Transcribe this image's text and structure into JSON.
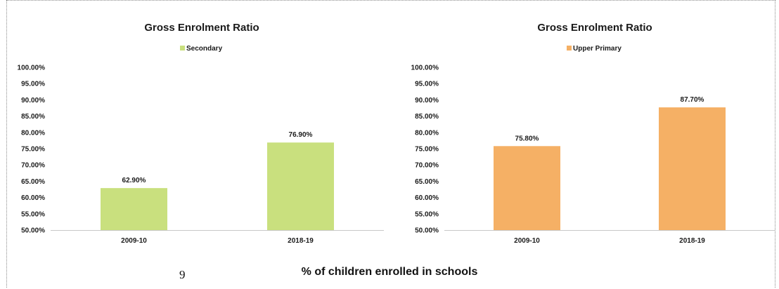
{
  "caption": "% of children enrolled in schools",
  "stray_mark": "9",
  "chart_data": [
    {
      "type": "bar",
      "title": "Gross Enrolment Ratio",
      "categories": [
        "2009-10",
        "2018-19"
      ],
      "series": [
        {
          "name": "Secondary",
          "values": [
            62.9,
            76.9
          ],
          "color": "#c9e07e"
        }
      ],
      "data_labels": [
        "62.90%",
        "76.90%"
      ],
      "ylim": [
        50,
        100
      ],
      "yticks": [
        "50.00%",
        "55.00%",
        "60.00%",
        "65.00%",
        "70.00%",
        "75.00%",
        "80.00%",
        "85.00%",
        "90.00%",
        "95.00%",
        "100.00%"
      ],
      "legend": "top",
      "grid": false
    },
    {
      "type": "bar",
      "title": "Gross Enrolment Ratio",
      "categories": [
        "2009-10",
        "2018-19"
      ],
      "series": [
        {
          "name": "Upper Primary",
          "values": [
            75.8,
            87.7
          ],
          "color": "#f5b065"
        }
      ],
      "data_labels": [
        "75.80%",
        "87.70%"
      ],
      "ylim": [
        50,
        100
      ],
      "yticks": [
        "50.00%",
        "55.00%",
        "60.00%",
        "65.00%",
        "70.00%",
        "75.00%",
        "80.00%",
        "85.00%",
        "90.00%",
        "95.00%",
        "100.00%"
      ],
      "legend": "top",
      "grid": false
    }
  ]
}
